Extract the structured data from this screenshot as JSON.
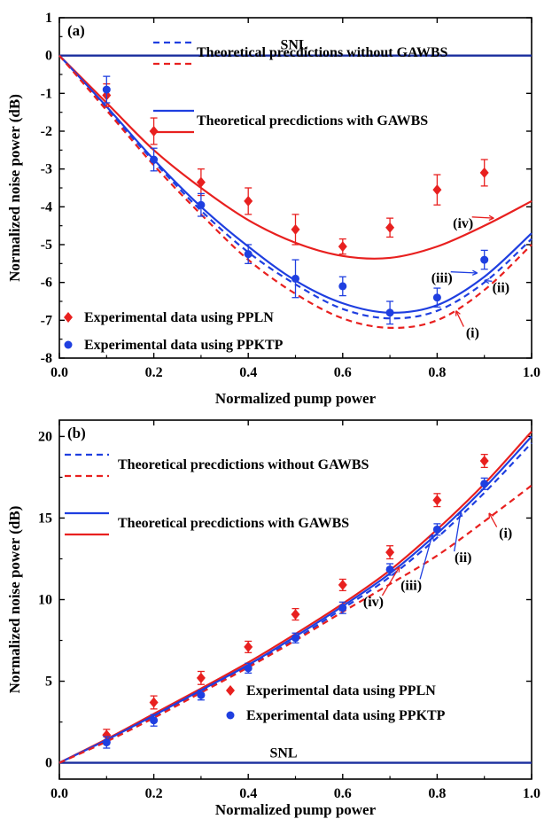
{
  "colors": {
    "ppln": "#e8201f",
    "ppktp": "#1f3fe0",
    "snl": "#1a2e9e",
    "axis": "#000000"
  },
  "chart_data": [
    {
      "type": "line",
      "panel_label": "(a)",
      "xlabel": "Normalized pump power",
      "ylabel": "Normalized noise power (dB)",
      "xlim": [
        0.0,
        1.0
      ],
      "ylim": [
        -8,
        1
      ],
      "xticks": [
        0.0,
        0.2,
        0.4,
        0.6,
        0.8,
        1.0
      ],
      "xtick_labels": [
        "0.0",
        "0.2",
        "0.4",
        "0.6",
        "0.8",
        "1.0"
      ],
      "yticks": [
        -8,
        -7,
        -6,
        -5,
        -4,
        -3,
        -2,
        -1,
        0,
        1
      ],
      "ytick_labels": [
        "-8",
        "-7",
        "-6",
        "-5",
        "-4",
        "-3",
        "-2",
        "-1",
        "0",
        "1"
      ],
      "snl": {
        "label": "SNL",
        "y": 0
      },
      "legend": [
        {
          "label": "Theoretical precdictions without GAWBS",
          "style": "dashed"
        },
        {
          "label": "Theoretical precdictions with GAWBS",
          "style": "solid"
        },
        {
          "label": "Experimental data using PPLN",
          "marker": "diamond",
          "color": "ppln"
        },
        {
          "label": "Experimental data using PPKTP",
          "marker": "circle",
          "color": "ppktp"
        }
      ],
      "series": [
        {
          "label": "(iv)",
          "color": "ppln",
          "style": "solid",
          "x": [
            0,
            0.1,
            0.2,
            0.3,
            0.4,
            0.5,
            0.6,
            0.7,
            0.8,
            0.9,
            1.0
          ],
          "y": [
            0,
            -1.25,
            -2.5,
            -3.5,
            -4.35,
            -4.95,
            -5.3,
            -5.35,
            -5.05,
            -4.5,
            -3.85
          ]
        },
        {
          "label": "(iii)",
          "color": "ppktp",
          "style": "solid",
          "x": [
            0,
            0.1,
            0.2,
            0.3,
            0.4,
            0.5,
            0.6,
            0.7,
            0.8,
            0.9,
            1.0
          ],
          "y": [
            0,
            -1.35,
            -2.75,
            -4.0,
            -5.05,
            -5.95,
            -6.55,
            -6.8,
            -6.6,
            -5.85,
            -4.7
          ]
        },
        {
          "label": "(ii)",
          "color": "ppktp",
          "style": "dashed",
          "x": [
            0,
            0.1,
            0.2,
            0.3,
            0.4,
            0.5,
            0.6,
            0.7,
            0.8,
            0.9,
            1.0
          ],
          "y": [
            0,
            -1.4,
            -2.8,
            -4.1,
            -5.2,
            -6.05,
            -6.7,
            -6.95,
            -6.75,
            -6.0,
            -4.85
          ]
        },
        {
          "label": "(i)",
          "color": "ppln",
          "style": "dashed",
          "x": [
            0,
            0.1,
            0.2,
            0.3,
            0.4,
            0.5,
            0.6,
            0.7,
            0.8,
            0.9,
            1.0
          ],
          "y": [
            0,
            -1.45,
            -2.9,
            -4.2,
            -5.4,
            -6.3,
            -6.95,
            -7.2,
            -7.0,
            -6.2,
            -5.0
          ]
        }
      ],
      "annotations": [
        {
          "text": "(iv)",
          "x": 0.855,
          "y": -4.55,
          "color": "ppln",
          "arrow_to": [
            0.92,
            -4.3
          ]
        },
        {
          "text": "(iii)",
          "x": 0.81,
          "y": -6.0,
          "color": "ppktp",
          "arrow_to": [
            0.885,
            -5.75
          ]
        },
        {
          "text": "(ii)",
          "x": 0.935,
          "y": -6.25,
          "color": "ppktp",
          "arrow_to": [
            0.9,
            -5.95
          ]
        },
        {
          "text": "(i)",
          "x": 0.875,
          "y": -7.45,
          "color": "ppln",
          "arrow_to": [
            0.84,
            -6.75
          ]
        }
      ],
      "points": [
        {
          "name": "PPLN",
          "color": "ppln",
          "marker": "diamond",
          "x": [
            0.1,
            0.2,
            0.3,
            0.4,
            0.5,
            0.6,
            0.7,
            0.8,
            0.9
          ],
          "y": [
            -1.05,
            -2.0,
            -3.35,
            -3.85,
            -4.6,
            -5.05,
            -4.55,
            -3.55,
            -3.1
          ],
          "err": [
            0.3,
            0.35,
            0.35,
            0.35,
            0.4,
            0.2,
            0.25,
            0.4,
            0.35
          ]
        },
        {
          "name": "PPKTP",
          "color": "ppktp",
          "marker": "circle",
          "x": [
            0.1,
            0.2,
            0.3,
            0.4,
            0.5,
            0.6,
            0.7,
            0.8,
            0.9
          ],
          "y": [
            -0.9,
            -2.75,
            -3.95,
            -5.25,
            -5.9,
            -6.1,
            -6.8,
            -6.4,
            -5.4
          ],
          "err": [
            0.35,
            0.3,
            0.3,
            0.25,
            0.5,
            0.25,
            0.3,
            0.25,
            0.25
          ]
        }
      ]
    },
    {
      "type": "line",
      "panel_label": "(b)",
      "xlabel": "Normalized pump power",
      "ylabel": "Normalized noise power (dB)",
      "xlim": [
        0.0,
        1.0
      ],
      "ylim": [
        -1,
        21
      ],
      "xticks": [
        0.0,
        0.2,
        0.4,
        0.6,
        0.8,
        1.0
      ],
      "xtick_labels": [
        "0.0",
        "0.2",
        "0.4",
        "0.6",
        "0.8",
        "1.0"
      ],
      "yticks": [
        0,
        5,
        10,
        15,
        20
      ],
      "ytick_labels": [
        "0",
        "5",
        "10",
        "15",
        "20"
      ],
      "snl": {
        "label": "SNL",
        "y": 0
      },
      "legend": [
        {
          "label": "Theoretical precdictions without GAWBS",
          "style": "dashed"
        },
        {
          "label": "Theoretical precdictions with GAWBS",
          "style": "solid"
        },
        {
          "label": "Experimental data using PPLN",
          "marker": "diamond",
          "color": "ppln"
        },
        {
          "label": "Experimental data using PPKTP",
          "marker": "circle",
          "color": "ppktp"
        }
      ],
      "series": [
        {
          "label": "(iv)",
          "color": "ppln",
          "style": "solid",
          "x": [
            0,
            0.1,
            0.2,
            0.3,
            0.4,
            0.5,
            0.6,
            0.7,
            0.8,
            0.9,
            1.0
          ],
          "y": [
            0,
            1.45,
            3.0,
            4.55,
            6.15,
            7.9,
            9.75,
            11.8,
            14.3,
            17.1,
            20.3
          ]
        },
        {
          "label": "(iii)",
          "color": "ppktp",
          "style": "solid",
          "x": [
            0,
            0.1,
            0.2,
            0.3,
            0.4,
            0.5,
            0.6,
            0.7,
            0.8,
            0.9,
            1.0
          ],
          "y": [
            0,
            1.4,
            2.9,
            4.45,
            6.0,
            7.75,
            9.6,
            11.6,
            14.05,
            16.85,
            20.0
          ]
        },
        {
          "label": "(ii)",
          "color": "ppktp",
          "style": "dashed",
          "x": [
            0,
            0.1,
            0.2,
            0.3,
            0.4,
            0.5,
            0.6,
            0.7,
            0.8,
            0.9,
            1.0
          ],
          "y": [
            0,
            1.35,
            2.8,
            4.35,
            5.9,
            7.6,
            9.45,
            11.4,
            13.8,
            16.55,
            19.6
          ]
        },
        {
          "label": "(i)",
          "color": "ppln",
          "style": "dashed",
          "x": [
            0,
            0.1,
            0.2,
            0.3,
            0.4,
            0.5,
            0.6,
            0.7,
            0.8,
            0.9,
            1.0
          ],
          "y": [
            0,
            1.3,
            2.75,
            4.3,
            5.85,
            7.5,
            9.25,
            10.95,
            12.7,
            14.8,
            17.0
          ]
        }
      ],
      "annotations": [
        {
          "text": "(iv)",
          "x": 0.665,
          "y": 9.6,
          "color": "ppln",
          "arrow_to": [
            0.72,
            12.0
          ]
        },
        {
          "text": "(iii)",
          "x": 0.745,
          "y": 10.6,
          "color": "ppktp",
          "arrow_to": [
            0.79,
            14.0
          ]
        },
        {
          "text": "(ii)",
          "x": 0.855,
          "y": 12.3,
          "color": "ppktp",
          "arrow_to": [
            0.85,
            15.4
          ]
        },
        {
          "text": "(i)",
          "x": 0.945,
          "y": 13.8,
          "color": "ppln",
          "arrow_to": [
            0.91,
            15.3
          ]
        }
      ],
      "points": [
        {
          "name": "PPLN",
          "color": "ppln",
          "marker": "diamond",
          "x": [
            0.1,
            0.2,
            0.3,
            0.4,
            0.5,
            0.6,
            0.7,
            0.8,
            0.9
          ],
          "y": [
            1.7,
            3.7,
            5.2,
            7.1,
            9.1,
            10.9,
            12.9,
            16.1,
            18.5
          ],
          "err": [
            0.35,
            0.4,
            0.4,
            0.35,
            0.35,
            0.35,
            0.4,
            0.4,
            0.4
          ]
        },
        {
          "name": "PPKTP",
          "color": "ppktp",
          "marker": "circle",
          "x": [
            0.1,
            0.2,
            0.3,
            0.4,
            0.5,
            0.6,
            0.7,
            0.8,
            0.9
          ],
          "y": [
            1.25,
            2.6,
            4.15,
            5.8,
            7.65,
            9.5,
            11.85,
            14.3,
            17.1
          ],
          "err": [
            0.35,
            0.35,
            0.3,
            0.3,
            0.3,
            0.35,
            0.35,
            0.35,
            0.35
          ]
        }
      ]
    }
  ]
}
